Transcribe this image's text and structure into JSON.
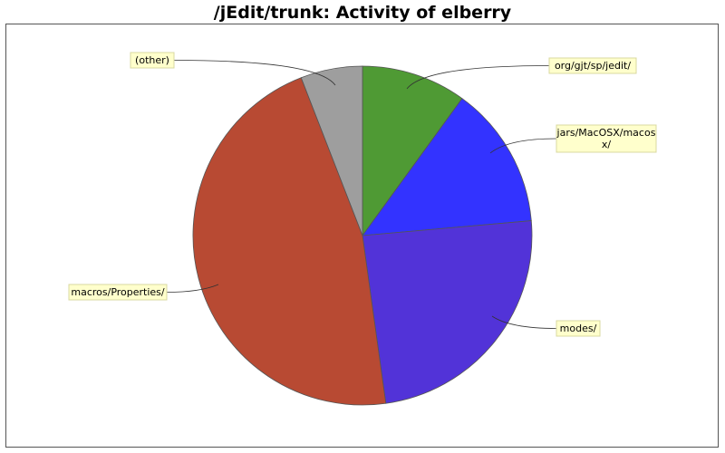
{
  "chart_data": {
    "type": "pie",
    "title": "/jEdit/trunk: Activity of elberry",
    "slices": [
      {
        "label": "org/gjt/sp/jedit/",
        "value": 10.0,
        "color": "#4f9a34"
      },
      {
        "label": "jars/MacOSX/macos x/",
        "label_lines": [
          "jars/MacOSX/macos",
          "x/"
        ],
        "value": 13.6,
        "color": "#3333ff"
      },
      {
        "label": "modes/",
        "value": 24.2,
        "color": "#5233d8"
      },
      {
        "label": "macros/Properties/",
        "value": 46.3,
        "color": "#b84a33"
      },
      {
        "label": "(other)",
        "value": 5.9,
        "color": "#9e9e9e"
      }
    ],
    "start_angle_deg": 0,
    "direction": "clockwise",
    "legend": "none"
  }
}
